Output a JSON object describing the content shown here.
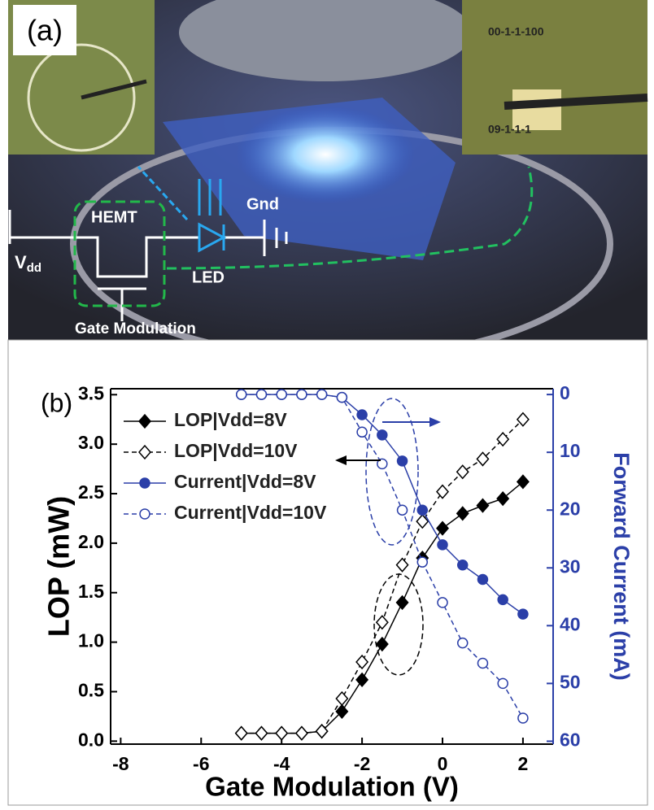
{
  "panel_a": {
    "label": "(a)",
    "hemt": "HEMT",
    "gnd": "Gnd",
    "led": "LED",
    "vdd": "V",
    "vdd_sub": "dd",
    "gate": "Gate Modulation",
    "inset_top": "00-1-1-100",
    "inset_bottom": "09-1-1-1"
  },
  "chart_data": {
    "type": "line",
    "label": "(b)",
    "x_label": "Gate Modulation (V)",
    "y_label": "LOP (mW)",
    "y2_label": "Forward Current (mA)",
    "x": [
      -5,
      -4.5,
      -4,
      -3.5,
      -3,
      -2.5,
      -2,
      -1.5,
      -1,
      -0.5,
      0,
      0.5,
      1,
      1.5,
      2
    ],
    "xlim": [
      -8.25,
      2.75
    ],
    "xticks": [
      -8,
      -6,
      -4,
      -2,
      0,
      2
    ],
    "ylim": [
      -0.03,
      3.56
    ],
    "yticks": [
      {
        "value": 0,
        "label": "0.0"
      },
      0.5,
      {
        "value": 1,
        "label": "1.0"
      },
      1.5,
      {
        "value": 2,
        "label": "2.0"
      },
      2.5,
      {
        "value": 3,
        "label": "3.0"
      },
      3.5
    ],
    "y2lim": [
      60.5,
      -1
    ],
    "y2ticks": [
      0,
      10,
      20,
      30,
      40,
      50,
      60
    ],
    "legend": "upper left",
    "grid": false,
    "y2_color": "#2b3fa8",
    "series": [
      {
        "name": "LOP|Vdd=8V",
        "color": "#000000",
        "marker": "diamond",
        "filled": true,
        "linestyle": "solid",
        "values": [
          0.08,
          0.08,
          0.08,
          0.08,
          0.1,
          0.3,
          0.62,
          0.98,
          1.4,
          1.85,
          2.15,
          2.3,
          2.38,
          2.45,
          2.62
        ]
      },
      {
        "name": "LOP|Vdd=10V",
        "color": "#000000",
        "marker": "diamond",
        "filled": false,
        "linestyle": "dashed",
        "values": [
          0.08,
          0.08,
          0.08,
          0.08,
          0.1,
          0.43,
          0.8,
          1.2,
          1.78,
          2.22,
          2.52,
          2.72,
          2.85,
          3.05,
          3.25
        ]
      },
      {
        "name": "Current|Vdd=8V",
        "color": "#2b3fa8",
        "marker": "circle",
        "filled": true,
        "linestyle": "solid",
        "axis": "y2",
        "values": [
          0,
          0,
          0,
          0,
          0,
          0.5,
          3.5,
          7,
          11.5,
          20,
          26,
          29.5,
          32,
          35.5,
          38
        ]
      },
      {
        "name": "Current|Vdd=10V",
        "color": "#2b3fa8",
        "marker": "circle",
        "filled": false,
        "linestyle": "dashed",
        "axis": "y2",
        "values": [
          0,
          0,
          0,
          0,
          0,
          0.5,
          6.5,
          12,
          20,
          29,
          36,
          43,
          46.5,
          50,
          56
        ]
      }
    ]
  }
}
